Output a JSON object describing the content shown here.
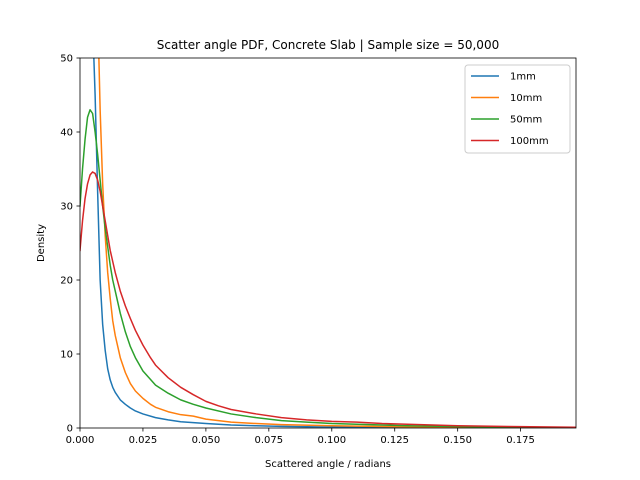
{
  "chart_data": {
    "type": "line",
    "title": "Scatter angle PDF, Concrete Slab | Sample size = 50,000",
    "xlabel": "Scattered angle / radians",
    "ylabel": "Density",
    "xlim": [
      0.0,
      0.197
    ],
    "ylim": [
      0,
      50
    ],
    "xticks": [
      "0.000",
      "0.025",
      "0.050",
      "0.075",
      "0.100",
      "0.125",
      "0.150",
      "0.175"
    ],
    "yticks": [
      "0",
      "10",
      "20",
      "30",
      "40",
      "50"
    ],
    "grid": false,
    "legend_position": "top-right",
    "series": [
      {
        "name": "1mm",
        "color": "#1f77b4",
        "x": [
          0.0055,
          0.006,
          0.007,
          0.008,
          0.009,
          0.01,
          0.011,
          0.012,
          0.013,
          0.014,
          0.016,
          0.018,
          0.02,
          0.022,
          0.025,
          0.03,
          0.035,
          0.04,
          0.05,
          0.06,
          0.07,
          0.08,
          0.1,
          0.12,
          0.15,
          0.197
        ],
        "y": [
          50,
          45,
          32,
          20,
          14,
          10.5,
          8,
          6.5,
          5.5,
          4.8,
          3.8,
          3.2,
          2.7,
          2.3,
          1.9,
          1.4,
          1.1,
          0.85,
          0.6,
          0.4,
          0.3,
          0.22,
          0.12,
          0.07,
          0.04,
          0.01
        ]
      },
      {
        "name": "10mm",
        "color": "#ff7f0e",
        "x": [
          0.0075,
          0.008,
          0.009,
          0.01,
          0.011,
          0.012,
          0.013,
          0.014,
          0.015,
          0.016,
          0.018,
          0.02,
          0.022,
          0.025,
          0.028,
          0.03,
          0.035,
          0.04,
          0.045,
          0.05,
          0.06,
          0.07,
          0.08,
          0.1,
          0.12,
          0.15,
          0.197
        ],
        "y": [
          50,
          43,
          33,
          26,
          21,
          17.5,
          14.5,
          12.5,
          11,
          9.5,
          7.5,
          6,
          5,
          4,
          3.2,
          2.8,
          2.2,
          1.8,
          1.6,
          1.2,
          0.8,
          0.6,
          0.45,
          0.3,
          0.2,
          0.1,
          0.03
        ]
      },
      {
        "name": "50mm",
        "color": "#2ca02c",
        "x": [
          0.0,
          0.001,
          0.002,
          0.003,
          0.004,
          0.005,
          0.006,
          0.007,
          0.008,
          0.009,
          0.01,
          0.011,
          0.012,
          0.013,
          0.014,
          0.015,
          0.016,
          0.018,
          0.02,
          0.022,
          0.025,
          0.03,
          0.035,
          0.04,
          0.045,
          0.05,
          0.06,
          0.07,
          0.08,
          0.09,
          0.1,
          0.11,
          0.12,
          0.13,
          0.15,
          0.17,
          0.197
        ],
        "y": [
          30,
          35,
          39,
          42,
          43,
          42.5,
          40,
          37,
          33.5,
          30,
          27,
          24.5,
          22,
          20,
          18.5,
          17,
          15.5,
          13,
          11,
          9.5,
          7.7,
          5.8,
          4.7,
          3.8,
          3.2,
          2.7,
          1.9,
          1.4,
          1.0,
          0.8,
          0.6,
          0.5,
          0.4,
          0.3,
          0.2,
          0.1,
          0.05
        ]
      },
      {
        "name": "100mm",
        "color": "#d62728",
        "x": [
          0.0,
          0.001,
          0.002,
          0.003,
          0.004,
          0.005,
          0.006,
          0.007,
          0.008,
          0.009,
          0.01,
          0.011,
          0.012,
          0.013,
          0.014,
          0.016,
          0.018,
          0.02,
          0.022,
          0.025,
          0.028,
          0.03,
          0.035,
          0.04,
          0.045,
          0.05,
          0.055,
          0.06,
          0.07,
          0.08,
          0.09,
          0.1,
          0.11,
          0.12,
          0.13,
          0.14,
          0.15,
          0.17,
          0.197
        ],
        "y": [
          24,
          28,
          31,
          33,
          34.2,
          34.6,
          34.4,
          33.5,
          32,
          30,
          28,
          26,
          24,
          22.5,
          21,
          18.5,
          16.5,
          14.8,
          13.2,
          11.2,
          9.5,
          8.5,
          6.8,
          5.5,
          4.5,
          3.6,
          3.0,
          2.5,
          1.9,
          1.4,
          1.1,
          0.9,
          0.8,
          0.6,
          0.5,
          0.4,
          0.3,
          0.2,
          0.1
        ]
      }
    ]
  }
}
